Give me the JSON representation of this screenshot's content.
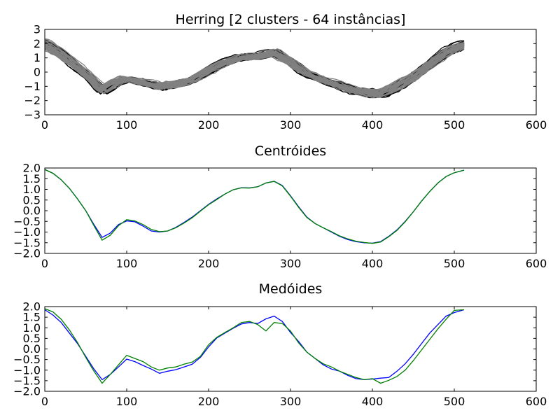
{
  "figure": {
    "background": "#ffffff"
  },
  "chart_data": [
    {
      "type": "line",
      "title": "Herring [2 clusters - 64 instâncias]",
      "xlabel": "",
      "ylabel": "",
      "xlim": [
        0,
        600
      ],
      "ylim": [
        -3,
        3
      ],
      "xticks": [
        0,
        100,
        200,
        300,
        400,
        500,
        600
      ],
      "yticks": [
        -3,
        -2,
        -1,
        0,
        1,
        2,
        3
      ],
      "ytick_labels": [
        "−3",
        "−2",
        "−1",
        "0",
        "1",
        "2",
        "3"
      ],
      "grid": false,
      "legend": "none",
      "series": [
        {
          "color": "#000000",
          "count": 33
        },
        {
          "color": "#808080",
          "count": 31
        }
      ],
      "base_curve": {
        "x": [
          0,
          20,
          40,
          55,
          70,
          85,
          100,
          120,
          140,
          160,
          180,
          200,
          220,
          240,
          260,
          280,
          300,
          320,
          340,
          360,
          380,
          400,
          410,
          430,
          450,
          470,
          490,
          512
        ],
        "y": [
          1.95,
          1.25,
          0.35,
          -0.35,
          -1.3,
          -0.75,
          -0.45,
          -0.7,
          -1.0,
          -0.85,
          -0.55,
          0.1,
          0.65,
          1.0,
          1.05,
          1.35,
          0.7,
          -0.1,
          -0.55,
          -0.95,
          -1.3,
          -1.45,
          -1.48,
          -1.0,
          -0.35,
          0.5,
          1.35,
          1.9
        ]
      }
    },
    {
      "type": "line",
      "title": "Centróides",
      "xlabel": "",
      "ylabel": "",
      "xlim": [
        0,
        600
      ],
      "ylim": [
        -2,
        2
      ],
      "xticks": [
        0,
        100,
        200,
        300,
        400,
        500,
        600
      ],
      "yticks": [
        -2,
        -1.5,
        -1,
        -0.5,
        0,
        0.5,
        1,
        1.5,
        2
      ],
      "ytick_labels": [
        "−2.0",
        "−1.5",
        "−1.0",
        "−0.5",
        "0.0",
        "0.5",
        "1.0",
        "1.5",
        "2.0"
      ],
      "grid": false,
      "legend": "none",
      "series": [
        {
          "color": "#0000ff",
          "x": [
            0,
            10,
            20,
            30,
            40,
            50,
            60,
            70,
            80,
            90,
            100,
            110,
            120,
            130,
            140,
            150,
            160,
            170,
            180,
            190,
            200,
            210,
            220,
            230,
            240,
            250,
            260,
            270,
            280,
            290,
            300,
            310,
            320,
            330,
            340,
            350,
            360,
            370,
            380,
            390,
            400,
            410,
            420,
            430,
            440,
            450,
            460,
            470,
            480,
            490,
            500,
            512
          ],
          "y": [
            1.93,
            1.75,
            1.45,
            1.05,
            0.55,
            0.0,
            -0.65,
            -1.25,
            -1.05,
            -0.65,
            -0.48,
            -0.52,
            -0.72,
            -0.95,
            -1.0,
            -0.95,
            -0.78,
            -0.55,
            -0.3,
            0.0,
            0.3,
            0.55,
            0.78,
            0.98,
            1.08,
            1.07,
            1.12,
            1.3,
            1.38,
            1.18,
            0.7,
            0.18,
            -0.3,
            -0.6,
            -0.8,
            -1.0,
            -1.2,
            -1.35,
            -1.45,
            -1.5,
            -1.52,
            -1.45,
            -1.2,
            -0.9,
            -0.5,
            -0.05,
            0.45,
            0.9,
            1.3,
            1.6,
            1.78,
            1.9
          ]
        },
        {
          "color": "#008000",
          "x": [
            0,
            10,
            20,
            30,
            40,
            50,
            60,
            70,
            80,
            90,
            100,
            110,
            120,
            130,
            140,
            150,
            160,
            170,
            180,
            190,
            200,
            210,
            220,
            230,
            240,
            250,
            260,
            270,
            280,
            290,
            300,
            310,
            320,
            330,
            340,
            350,
            360,
            370,
            380,
            390,
            400,
            410,
            420,
            430,
            440,
            450,
            460,
            470,
            480,
            490,
            500,
            512
          ],
          "y": [
            1.93,
            1.75,
            1.45,
            1.05,
            0.55,
            0.0,
            -0.7,
            -1.38,
            -1.15,
            -0.7,
            -0.42,
            -0.48,
            -0.65,
            -0.88,
            -0.98,
            -0.95,
            -0.8,
            -0.58,
            -0.33,
            -0.02,
            0.28,
            0.52,
            0.78,
            0.98,
            1.07,
            1.06,
            1.12,
            1.3,
            1.37,
            1.16,
            0.68,
            0.15,
            -0.32,
            -0.6,
            -0.8,
            -0.98,
            -1.18,
            -1.32,
            -1.43,
            -1.49,
            -1.53,
            -1.47,
            -1.22,
            -0.92,
            -0.52,
            -0.05,
            0.45,
            0.9,
            1.3,
            1.6,
            1.78,
            1.9
          ]
        }
      ]
    },
    {
      "type": "line",
      "title": "Medóides",
      "xlabel": "",
      "ylabel": "",
      "xlim": [
        0,
        600
      ],
      "ylim": [
        -2,
        2
      ],
      "xticks": [
        0,
        100,
        200,
        300,
        400,
        500,
        600
      ],
      "yticks": [
        -2,
        -1.5,
        -1,
        -0.5,
        0,
        0.5,
        1,
        1.5,
        2
      ],
      "ytick_labels": [
        "−2.0",
        "−1.5",
        "−1.0",
        "−0.5",
        "0.0",
        "0.5",
        "1.0",
        "1.5",
        "2.0"
      ],
      "grid": false,
      "legend": "none",
      "series": [
        {
          "color": "#0000ff",
          "x": [
            0,
            10,
            20,
            30,
            40,
            50,
            60,
            70,
            80,
            90,
            100,
            110,
            120,
            130,
            140,
            150,
            160,
            170,
            180,
            190,
            200,
            210,
            220,
            230,
            240,
            250,
            260,
            270,
            280,
            290,
            300,
            310,
            320,
            330,
            340,
            350,
            360,
            370,
            380,
            390,
            400,
            410,
            420,
            430,
            440,
            450,
            460,
            470,
            480,
            490,
            500,
            512
          ],
          "y": [
            1.85,
            1.6,
            1.25,
            0.75,
            0.25,
            -0.35,
            -0.95,
            -1.45,
            -1.2,
            -0.85,
            -0.48,
            -0.6,
            -0.78,
            -0.95,
            -1.15,
            -1.05,
            -0.98,
            -0.85,
            -0.72,
            -0.4,
            0.1,
            0.52,
            0.75,
            0.98,
            1.18,
            1.25,
            1.2,
            1.42,
            1.55,
            1.3,
            0.78,
            0.35,
            -0.15,
            -0.45,
            -0.75,
            -0.95,
            -1.05,
            -1.25,
            -1.4,
            -1.45,
            -1.42,
            -1.38,
            -1.35,
            -1.05,
            -0.7,
            -0.25,
            0.25,
            0.75,
            1.15,
            1.55,
            1.72,
            1.85
          ]
        },
        {
          "color": "#008000",
          "x": [
            0,
            10,
            20,
            30,
            40,
            50,
            60,
            70,
            80,
            90,
            100,
            110,
            120,
            130,
            140,
            150,
            160,
            170,
            180,
            190,
            200,
            210,
            220,
            230,
            240,
            250,
            260,
            270,
            280,
            290,
            300,
            310,
            320,
            330,
            340,
            350,
            360,
            370,
            380,
            390,
            400,
            410,
            420,
            430,
            440,
            450,
            460,
            470,
            480,
            490,
            500,
            512
          ],
          "y": [
            1.9,
            1.75,
            1.4,
            0.9,
            0.3,
            -0.4,
            -1.05,
            -1.62,
            -1.2,
            -0.75,
            -0.3,
            -0.45,
            -0.6,
            -0.85,
            -1.0,
            -0.9,
            -0.85,
            -0.72,
            -0.62,
            -0.35,
            0.2,
            0.55,
            0.78,
            1.0,
            1.25,
            1.3,
            1.15,
            0.85,
            1.25,
            1.2,
            0.85,
            0.28,
            -0.15,
            -0.45,
            -0.7,
            -0.85,
            -1.05,
            -1.2,
            -1.35,
            -1.45,
            -1.4,
            -1.62,
            -1.48,
            -1.3,
            -1.0,
            -0.55,
            -0.05,
            0.45,
            0.95,
            1.4,
            1.82,
            1.85
          ]
        }
      ]
    }
  ]
}
